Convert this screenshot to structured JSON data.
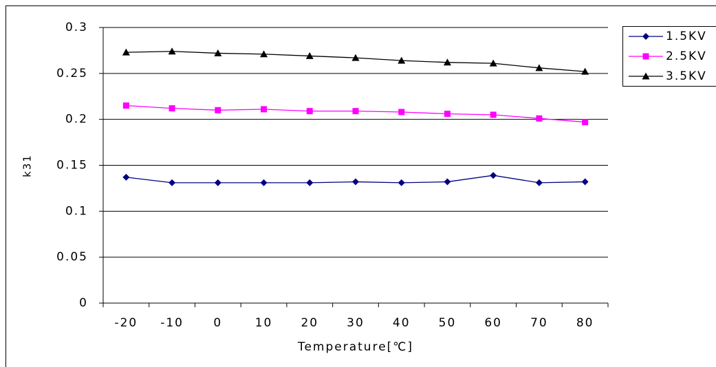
{
  "chart_data": {
    "type": "line",
    "x_label": "Temperature[℃]",
    "y_label": "k31",
    "categories": [
      "-20",
      "-10",
      "0",
      "10",
      "20",
      "30",
      "40",
      "50",
      "60",
      "70",
      "80"
    ],
    "series": [
      {
        "name": "1.5KV",
        "color": "#000080",
        "marker": "diamond",
        "values": [
          0.137,
          0.131,
          0.131,
          0.131,
          0.131,
          0.132,
          0.131,
          0.132,
          0.139,
          0.131,
          0.132
        ]
      },
      {
        "name": "2.5KV",
        "color": "#ff00ff",
        "marker": "square",
        "values": [
          0.215,
          0.212,
          0.21,
          0.211,
          0.209,
          0.209,
          0.208,
          0.206,
          0.205,
          0.201,
          0.197
        ]
      },
      {
        "name": "3.5KV",
        "color": "#000000",
        "marker": "triangle",
        "values": [
          0.273,
          0.274,
          0.272,
          0.271,
          0.269,
          0.267,
          0.264,
          0.262,
          0.261,
          0.256,
          0.252
        ]
      }
    ],
    "ylim": [
      0,
      0.3
    ],
    "yticks": [
      0,
      0.05,
      0.1,
      0.15,
      0.2,
      0.25,
      0.3
    ],
    "grid": true,
    "legend": "top-right"
  }
}
